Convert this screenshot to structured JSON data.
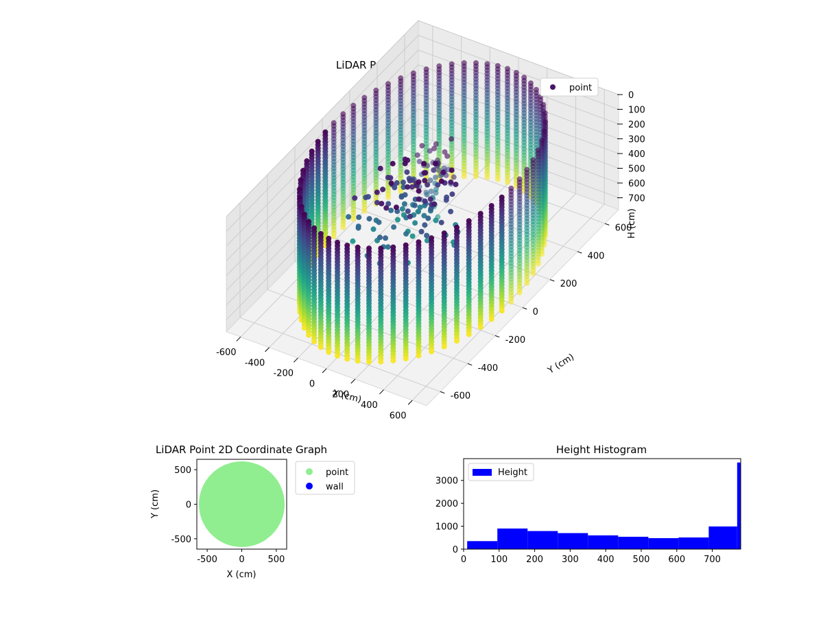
{
  "colors": {
    "point_3d": "#46166b",
    "point_2d": "#90ee90",
    "wall": "#0000ff",
    "hist": "#0000ff",
    "pane": "#f2f2f2",
    "grid": "#cccccc"
  },
  "chart_data": [
    {
      "type": "scatter3d",
      "title": "LiDAR Point 3D Coordinate Graph",
      "xlabel": "X (cm)",
      "ylabel": "Y (cm)",
      "zlabel": "H (cm)",
      "xlim": [
        -700,
        700
      ],
      "ylim": [
        -700,
        700
      ],
      "zlim": [
        780,
        0
      ],
      "xticks": [
        "-600",
        "-400",
        "-200",
        "0",
        "200",
        "400",
        "600"
      ],
      "yticks": [
        "-600",
        "-400",
        "-200",
        "0",
        "200",
        "400",
        "600"
      ],
      "zticks": [
        "0",
        "100",
        "200",
        "300",
        "400",
        "500",
        "600",
        "700"
      ],
      "colormap": "viridis",
      "legend": [
        {
          "name": "point"
        }
      ],
      "legend_position": "top-right",
      "wall": {
        "radius": 620,
        "height_min": 0,
        "height_max": 780,
        "columns": 60
      },
      "interior": {
        "description_hidden": true
      }
    },
    {
      "type": "scatter",
      "title": "LiDAR Point 2D Coordinate Graph",
      "xlabel": "X (cm)",
      "ylabel": "Y (cm)",
      "xlim": [
        -650,
        650
      ],
      "ylim": [
        -650,
        650
      ],
      "xticks": [
        -500,
        0,
        500
      ],
      "yticks": [
        -500,
        0,
        500
      ],
      "series": [
        {
          "name": "point",
          "shape": "disk",
          "radius": 620
        },
        {
          "name": "wall",
          "points": []
        }
      ],
      "legend_position": "outside-right"
    },
    {
      "type": "bar",
      "title": "Height Histogram",
      "xlabel": "",
      "ylabel": "",
      "xlim": [
        0,
        780
      ],
      "ylim": [
        0,
        3950
      ],
      "xticks": [
        0,
        100,
        200,
        300,
        400,
        500,
        600,
        700
      ],
      "yticks": [
        0,
        1000,
        2000,
        3000
      ],
      "bins": [
        [
          10,
          95,
          350
        ],
        [
          95,
          180,
          900
        ],
        [
          180,
          265,
          790
        ],
        [
          265,
          350,
          700
        ],
        [
          350,
          435,
          600
        ],
        [
          435,
          520,
          540
        ],
        [
          520,
          605,
          480
        ],
        [
          605,
          690,
          510
        ],
        [
          690,
          770,
          990
        ],
        [
          770,
          780,
          3780
        ]
      ],
      "series": [
        {
          "name": "Height"
        }
      ],
      "legend_position": "top-left"
    }
  ]
}
